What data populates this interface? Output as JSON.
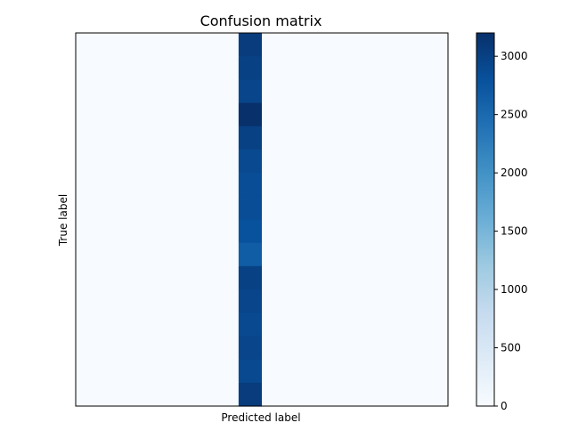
{
  "chart_data": {
    "type": "heatmap",
    "title": "Confusion matrix",
    "xlabel": "Predicted label",
    "ylabel": "True label",
    "n_classes": 16,
    "predicted_class_column": 7,
    "row_values": [
      3050,
      3000,
      2950,
      3200,
      3000,
      2900,
      2850,
      2850,
      2800,
      2650,
      3000,
      2950,
      2900,
      2950,
      2900,
      3050
    ],
    "other_cell_value": 0,
    "colormap": "Blues",
    "colorbar": {
      "min": 0,
      "max": 3200,
      "ticks": [
        0,
        500,
        1000,
        1500,
        2000,
        2500,
        3000
      ]
    },
    "grid": false,
    "axis_ticks_visible": false
  }
}
